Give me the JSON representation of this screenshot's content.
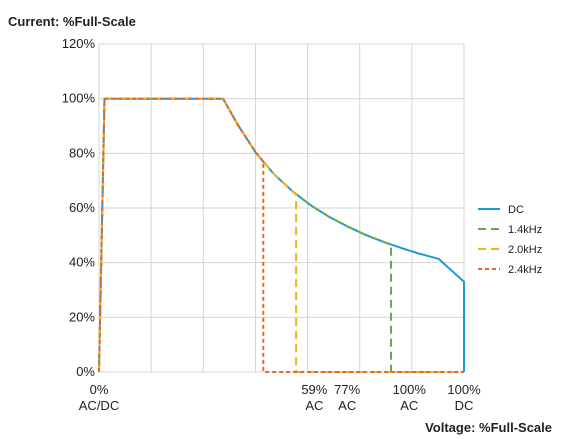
{
  "chart_data": {
    "type": "line",
    "ylabel": "Current: %Full-Scale",
    "xlabel": "Voltage: %Full-Scale",
    "ylim": [
      0,
      120
    ],
    "yticks": [
      "0%",
      "20%",
      "40%",
      "60%",
      "80%",
      "100%",
      "120%"
    ],
    "xlim": [
      0,
      100
    ],
    "xticks": [
      {
        "x": 0,
        "line1": "0%",
        "line2": "AC/DC"
      },
      {
        "x": 59,
        "line1": "59%",
        "line2": "AC"
      },
      {
        "x": 68,
        "line1": "77%",
        "line2": "AC"
      },
      {
        "x": 85,
        "line1": "100%",
        "line2": "AC"
      },
      {
        "x": 100,
        "line1": "100%",
        "line2": "DC"
      }
    ],
    "grid": true,
    "legend_position": "right",
    "series": [
      {
        "name": "DC",
        "color": "#1b9bd7",
        "dash": "solid",
        "points": [
          [
            0,
            0
          ],
          [
            1.5,
            100
          ],
          [
            34,
            100
          ],
          [
            38,
            90.5
          ],
          [
            43,
            80.2
          ],
          [
            48,
            72.3
          ],
          [
            53,
            66.1
          ],
          [
            58,
            61
          ],
          [
            63,
            56.8
          ],
          [
            68,
            53.3
          ],
          [
            73,
            50.2
          ],
          [
            78,
            47.6
          ],
          [
            83,
            45.3
          ],
          [
            88,
            43.2
          ],
          [
            93,
            41.4
          ],
          [
            100,
            33
          ],
          [
            100,
            0
          ]
        ]
      },
      {
        "name": "1.4kHz",
        "color": "#6aa84f",
        "dash": "dashed",
        "points": [
          [
            0,
            0
          ],
          [
            1.5,
            100
          ],
          [
            34,
            100
          ],
          [
            38,
            90.5
          ],
          [
            43,
            80.2
          ],
          [
            48,
            72.3
          ],
          [
            53,
            66.1
          ],
          [
            58,
            61
          ],
          [
            63,
            56.8
          ],
          [
            68,
            53.3
          ],
          [
            73,
            50.2
          ],
          [
            78,
            47.6
          ],
          [
            80,
            46.5
          ],
          [
            80,
            0
          ],
          [
            100,
            0
          ]
        ]
      },
      {
        "name": "2.0kHz",
        "color": "#f2b21a",
        "dash": "dashed",
        "points": [
          [
            0,
            0
          ],
          [
            1.5,
            100
          ],
          [
            34,
            100
          ],
          [
            38,
            90.5
          ],
          [
            43,
            80.2
          ],
          [
            48,
            72.3
          ],
          [
            53,
            66.1
          ],
          [
            54,
            65
          ],
          [
            54,
            0
          ],
          [
            100,
            0
          ]
        ]
      },
      {
        "name": "2.4kHz",
        "color": "#e06a2c",
        "dash": "dotted",
        "points": [
          [
            0,
            0
          ],
          [
            1.5,
            100
          ],
          [
            34,
            100
          ],
          [
            38,
            90.5
          ],
          [
            43,
            80.2
          ],
          [
            45,
            77
          ],
          [
            45,
            0
          ],
          [
            100,
            0
          ]
        ]
      }
    ]
  }
}
